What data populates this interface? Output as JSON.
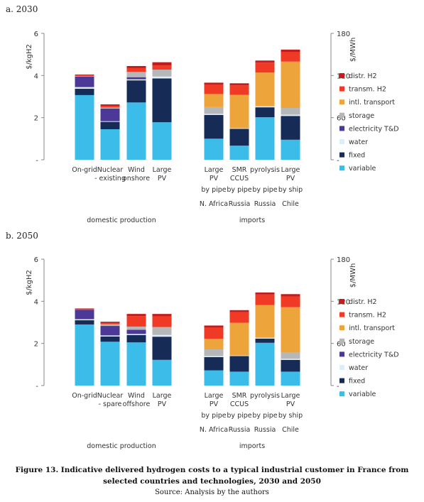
{
  "panels": [
    {
      "label": "a. 2030"
    },
    {
      "label": "b. 2050"
    }
  ],
  "caption": {
    "title": "Figure 13. Indicative delivered hydrogen costs to a typical industrial customer in France from selected countries and technologies, 2030 and 2050",
    "source": "Source: Analysis by the authors"
  },
  "chart_data": [
    {
      "type": "bar",
      "stacked": true,
      "title": "a. 2030",
      "ylabel_left": "$/kgH2",
      "ylabel_right": "$/MWh",
      "ylim_left": [
        0,
        6
      ],
      "ylim_right": [
        0,
        180
      ],
      "yticks_left": [
        "-",
        "2",
        "4",
        "6"
      ],
      "yticks_right": [
        "-",
        "60",
        "120",
        "180"
      ],
      "grid": false,
      "legend_position": "right",
      "groups": [
        {
          "label": "domestic production",
          "categories": [
            0,
            1,
            2,
            3
          ]
        },
        {
          "label": "imports",
          "categories": [
            4,
            5,
            6,
            7
          ]
        }
      ],
      "categories": [
        [
          "On-grid"
        ],
        [
          "Nuclear",
          "- existing"
        ],
        [
          "Wind",
          "onshore"
        ],
        [
          "Large",
          "PV"
        ],
        [
          "Large",
          "PV",
          "by pipe",
          "N. Africa"
        ],
        [
          "SMR",
          "CCUS",
          "by pipe",
          "Russia"
        ],
        [
          "pyrolysis",
          "",
          "by pipe",
          "Russia"
        ],
        [
          "Large",
          "PV",
          "by ship",
          "Chile"
        ]
      ],
      "series": [
        {
          "name": "variable",
          "color": "#3bbce9",
          "values": [
            3.07,
            1.45,
            2.72,
            1.78,
            1.0,
            0.67,
            2.02,
            0.95
          ]
        },
        {
          "name": "fixed",
          "color": "#172b57",
          "values": [
            0.3,
            0.35,
            1.05,
            2.08,
            1.13,
            0.8,
            0.47,
            1.13
          ]
        },
        {
          "name": "water",
          "color": "#ddeef8",
          "values": [
            0.08,
            0.03,
            0.05,
            0.09,
            0.05,
            0.03,
            0.05,
            0.06
          ]
        },
        {
          "name": "electricity T&D",
          "color": "#4b3897",
          "values": [
            0.5,
            0.6,
            0.1,
            0.0,
            0.0,
            0.0,
            0.0,
            0.0
          ]
        },
        {
          "name": "storage",
          "color": "#b6b7b8",
          "values": [
            0.02,
            0.05,
            0.25,
            0.33,
            0.32,
            0.0,
            0.0,
            0.32
          ]
        },
        {
          "name": "intl. transport",
          "color": "#eda43a",
          "values": [
            0.0,
            0.0,
            0.0,
            0.0,
            0.62,
            1.58,
            1.6,
            2.2
          ]
        },
        {
          "name": "transm. H2",
          "color": "#f03a25",
          "values": [
            0.05,
            0.08,
            0.18,
            0.2,
            0.44,
            0.45,
            0.47,
            0.45
          ]
        },
        {
          "name": "distr. H2",
          "color": "#c21c1d",
          "values": [
            0.03,
            0.07,
            0.1,
            0.15,
            0.1,
            0.1,
            0.1,
            0.12
          ]
        }
      ]
    },
    {
      "type": "bar",
      "stacked": true,
      "title": "b. 2050",
      "ylabel_left": "$/kgH2",
      "ylabel_right": "$/MWh",
      "ylim_left": [
        0,
        6
      ],
      "ylim_right": [
        0,
        180
      ],
      "yticks_left": [
        "-",
        "2",
        "4",
        "6"
      ],
      "yticks_right": [
        "-",
        "60",
        "120",
        "180"
      ],
      "grid": false,
      "legend_position": "right",
      "groups": [
        {
          "label": "domestic production",
          "categories": [
            0,
            1,
            2,
            3
          ]
        },
        {
          "label": "imports",
          "categories": [
            4,
            5,
            6,
            7
          ]
        }
      ],
      "categories": [
        [
          "On-grid"
        ],
        [
          "Nuclear",
          "- spare"
        ],
        [
          "Wind",
          "offshore"
        ],
        [
          "Large",
          "PV"
        ],
        [
          "Large",
          "PV",
          "by pipe",
          "N. Africa"
        ],
        [
          "SMR",
          "CCUS",
          "by pipe",
          "Russia"
        ],
        [
          "pyrolysis",
          "",
          "by pipe",
          "Russia"
        ],
        [
          "Large",
          "PV",
          "by ship",
          "Chile"
        ]
      ],
      "series": [
        {
          "name": "variable",
          "color": "#3bbce9",
          "values": [
            2.9,
            2.08,
            2.05,
            1.22,
            0.72,
            0.66,
            2.03,
            0.66
          ]
        },
        {
          "name": "fixed",
          "color": "#172b57",
          "values": [
            0.2,
            0.25,
            0.35,
            1.1,
            0.63,
            0.74,
            0.2,
            0.56
          ]
        },
        {
          "name": "water",
          "color": "#ddeef8",
          "values": [
            0.05,
            0.05,
            0.05,
            0.08,
            0.05,
            0.03,
            0.04,
            0.05
          ]
        },
        {
          "name": "electricity T&D",
          "color": "#4b3897",
          "values": [
            0.45,
            0.45,
            0.2,
            0.0,
            0.0,
            0.0,
            0.0,
            0.0
          ]
        },
        {
          "name": "storage",
          "color": "#b6b7b8",
          "values": [
            0.0,
            0.08,
            0.15,
            0.38,
            0.32,
            0.0,
            0.0,
            0.3
          ]
        },
        {
          "name": "intl. transport",
          "color": "#eda43a",
          "values": [
            0.0,
            0.0,
            0.0,
            0.0,
            0.5,
            1.55,
            1.55,
            2.15
          ]
        },
        {
          "name": "transm. H2",
          "color": "#f03a25",
          "values": [
            0.03,
            0.06,
            0.5,
            0.5,
            0.53,
            0.5,
            0.5,
            0.5
          ]
        },
        {
          "name": "distr. H2",
          "color": "#c21c1d",
          "values": [
            0.03,
            0.06,
            0.1,
            0.12,
            0.1,
            0.1,
            0.1,
            0.12
          ]
        }
      ]
    }
  ]
}
